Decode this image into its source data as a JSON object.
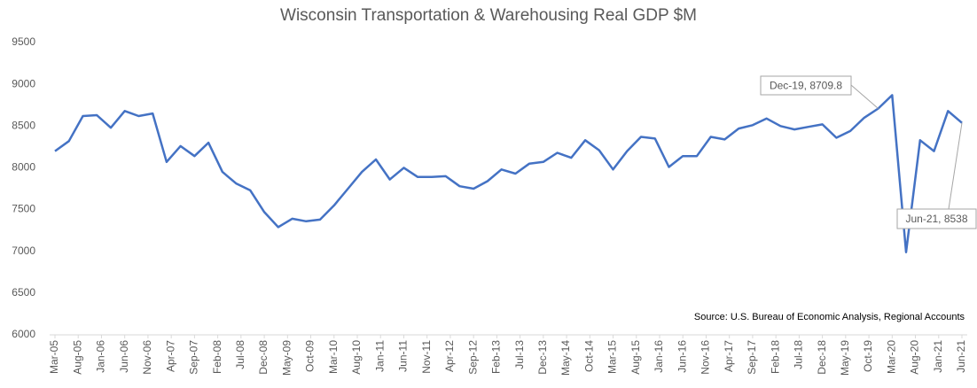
{
  "chart_data": {
    "type": "line",
    "title": "Wisconsin Transportation & Warehousing Real GDP $M",
    "source": "Source:  U.S. Bureau of Economic Analysis, Regional Accounts",
    "x": [
      "2005-03",
      "2005-06",
      "2005-09",
      "2005-12",
      "2006-03",
      "2006-06",
      "2006-09",
      "2006-12",
      "2007-03",
      "2007-06",
      "2007-09",
      "2007-12",
      "2008-03",
      "2008-06",
      "2008-09",
      "2008-12",
      "2009-03",
      "2009-06",
      "2009-09",
      "2009-12",
      "2010-03",
      "2010-06",
      "2010-09",
      "2010-12",
      "2011-03",
      "2011-06",
      "2011-09",
      "2011-12",
      "2012-03",
      "2012-06",
      "2012-09",
      "2012-12",
      "2013-03",
      "2013-06",
      "2013-09",
      "2013-12",
      "2014-03",
      "2014-06",
      "2014-09",
      "2014-12",
      "2015-03",
      "2015-06",
      "2015-09",
      "2015-12",
      "2016-03",
      "2016-06",
      "2016-09",
      "2016-12",
      "2017-03",
      "2017-06",
      "2017-09",
      "2017-12",
      "2018-03",
      "2018-06",
      "2018-09",
      "2018-12",
      "2019-03",
      "2019-06",
      "2019-09",
      "2019-12",
      "2020-03",
      "2020-06",
      "2020-09",
      "2020-12",
      "2021-03",
      "2021-06"
    ],
    "series": [
      {
        "name": "Real GDP",
        "color": "#4472c4",
        "values": [
          8200,
          8320,
          8620,
          8630,
          8480,
          8680,
          8620,
          8650,
          8070,
          8260,
          8140,
          8300,
          7950,
          7810,
          7730,
          7470,
          7290,
          7390,
          7360,
          7380,
          7550,
          7750,
          7950,
          8100,
          7860,
          8000,
          7890,
          7890,
          7900,
          7780,
          7750,
          7840,
          7980,
          7930,
          8050,
          8070,
          8180,
          8120,
          8330,
          8210,
          7980,
          8200,
          8370,
          8350,
          8010,
          8140,
          8140,
          8370,
          8340,
          8470,
          8510,
          8590,
          8500,
          8460,
          8490,
          8520,
          8360,
          8440,
          8600,
          8709.8,
          8870,
          6990,
          8330,
          8200,
          8680,
          8538
        ]
      }
    ],
    "xticks": [
      {
        "value": "2005-03",
        "label": "Mar-05"
      },
      {
        "value": "2005-08",
        "label": "Aug-05"
      },
      {
        "value": "2006-01",
        "label": "Jan-06"
      },
      {
        "value": "2006-06",
        "label": "Jun-06"
      },
      {
        "value": "2006-11",
        "label": "Nov-06"
      },
      {
        "value": "2007-04",
        "label": "Apr-07"
      },
      {
        "value": "2007-09",
        "label": "Sep-07"
      },
      {
        "value": "2008-02",
        "label": "Feb-08"
      },
      {
        "value": "2008-07",
        "label": "Jul-08"
      },
      {
        "value": "2008-12",
        "label": "Dec-08"
      },
      {
        "value": "2009-05",
        "label": "May-09"
      },
      {
        "value": "2009-10",
        "label": "Oct-09"
      },
      {
        "value": "2010-03",
        "label": "Mar-10"
      },
      {
        "value": "2010-08",
        "label": "Aug-10"
      },
      {
        "value": "2011-01",
        "label": "Jan-11"
      },
      {
        "value": "2011-06",
        "label": "Jun-11"
      },
      {
        "value": "2011-11",
        "label": "Nov-11"
      },
      {
        "value": "2012-04",
        "label": "Apr-12"
      },
      {
        "value": "2012-09",
        "label": "Sep-12"
      },
      {
        "value": "2013-02",
        "label": "Feb-13"
      },
      {
        "value": "2013-07",
        "label": "Jul-13"
      },
      {
        "value": "2013-12",
        "label": "Dec-13"
      },
      {
        "value": "2014-05",
        "label": "May-14"
      },
      {
        "value": "2014-10",
        "label": "Oct-14"
      },
      {
        "value": "2015-03",
        "label": "Mar-15"
      },
      {
        "value": "2015-08",
        "label": "Aug-15"
      },
      {
        "value": "2016-01",
        "label": "Jan-16"
      },
      {
        "value": "2016-06",
        "label": "Jun-16"
      },
      {
        "value": "2016-11",
        "label": "Nov-16"
      },
      {
        "value": "2017-04",
        "label": "Apr-17"
      },
      {
        "value": "2017-09",
        "label": "Sep-17"
      },
      {
        "value": "2018-02",
        "label": "Feb-18"
      },
      {
        "value": "2018-07",
        "label": "Jul-18"
      },
      {
        "value": "2018-12",
        "label": "Dec-18"
      },
      {
        "value": "2019-05",
        "label": "May-19"
      },
      {
        "value": "2019-10",
        "label": "Oct-19"
      },
      {
        "value": "2020-03",
        "label": "Mar-20"
      },
      {
        "value": "2020-08",
        "label": "Aug-20"
      },
      {
        "value": "2021-01",
        "label": "Jan-21"
      },
      {
        "value": "2021-06",
        "label": "Jun-21"
      }
    ],
    "ylim": [
      6000,
      9500
    ],
    "yticks": [
      6000,
      6500,
      7000,
      7500,
      8000,
      8500,
      9000,
      9500
    ],
    "grid": false,
    "annotations": [
      {
        "label": "Dec-19, 8709.8",
        "x": "2019-12",
        "y": 8709.8
      },
      {
        "label": "Jun-21, 8538",
        "x": "2021-06",
        "y": 8538
      }
    ]
  }
}
